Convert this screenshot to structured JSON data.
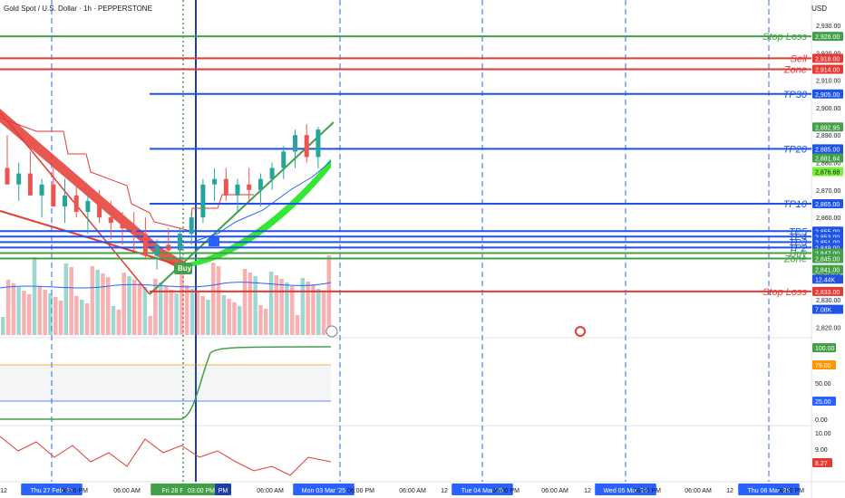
{
  "header": {
    "title": "Gold Spot / U.S. Dollar · 1h · PEPPERSTONE",
    "currency": "USD"
  },
  "colors": {
    "green": "#43a047",
    "red": "#e53935",
    "blue": "#1e53e5",
    "bull": "#26a69a",
    "bear": "#ef5350",
    "rsi_gray": "#787b86",
    "osc_orange": "#ff9800"
  },
  "chart_data": {
    "type": "candlestick",
    "symbol": "XAUUSD",
    "timeframe": "1h",
    "price_axis": {
      "ticks": [
        "2,930.00",
        "2,920.00",
        "2,910.00",
        "2,900.00",
        "2,890.00",
        "2,880.00",
        "2,870.00",
        "2,860.00",
        "2,850.00",
        "2,840.00",
        "2,830.00",
        "2,820.00"
      ]
    },
    "levels": [
      {
        "label": "Stop Loss",
        "price": 2926.0,
        "color": "#43a047",
        "tag": "2,926.00"
      },
      {
        "label": "Sell",
        "price": 2918.0,
        "color": "#e53935",
        "tag": "2,918.00"
      },
      {
        "label": "Zone",
        "price": 2914.0,
        "color": "#e53935",
        "tag": "2,914.00"
      },
      {
        "label": "TP30",
        "price": 2905.0,
        "color": "#1e53e5",
        "tag": "2,905.00"
      },
      {
        "label": "TP20",
        "price": 2885.0,
        "color": "#1e53e5",
        "tag": "2,885.00"
      },
      {
        "label": "TP10",
        "price": 2865.0,
        "color": "#1e53e5",
        "tag": "2,865.00"
      },
      {
        "label": "TP5",
        "price": 2855.0,
        "color": "#1e53e5",
        "tag": "2,855.00"
      },
      {
        "label": "TP4",
        "price": 2853.0,
        "color": "#1e53e5",
        "tag": "2,853.00"
      },
      {
        "label": "TP3",
        "price": 2851.0,
        "color": "#1e53e5",
        "tag": "2,851.00"
      },
      {
        "label": "TP2",
        "price": 2849.0,
        "color": "#1e53e5",
        "tag": "2,849.00"
      },
      {
        "label": "Buy",
        "price": 2847.0,
        "color": "#43a047",
        "tag": "2,847.00"
      },
      {
        "label": "Zone",
        "price": 2845.0,
        "color": "#43a047",
        "tag": "2,845.00"
      },
      {
        "label": "Stop Loss",
        "price": 2833.0,
        "color": "#e53935",
        "tag": "2,833.00"
      }
    ],
    "extra_tags": [
      {
        "text": "2,892.95",
        "color": "#43a047",
        "price": 2892.95
      },
      {
        "text": "2,882.21",
        "color": "#1e53e5",
        "price": 2882.21
      },
      {
        "text": "2,881.64",
        "color": "#43a047",
        "price": 2881.64
      },
      {
        "text": "2,876.68",
        "color": "#7bed3b",
        "price": 2876.68
      },
      {
        "text": "2,841.00",
        "color": "#43a047",
        "price": 2841.0
      },
      {
        "text": "12.44K",
        "color": "#1e53e5",
        "price": 2837.5
      },
      {
        "text": "7.08K",
        "color": "#1e53e5",
        "price": 2826.5
      }
    ],
    "candles_ohlc": [
      [
        2878,
        2890,
        2874,
        2872
      ],
      [
        2872,
        2880,
        2866,
        2876
      ],
      [
        2876,
        2884,
        2870,
        2868
      ],
      [
        2868,
        2874,
        2860,
        2872
      ],
      [
        2872,
        2878,
        2868,
        2864
      ],
      [
        2864,
        2874,
        2858,
        2868
      ],
      [
        2868,
        2872,
        2860,
        2862
      ],
      [
        2862,
        2868,
        2854,
        2866
      ],
      [
        2866,
        2870,
        2858,
        2860
      ],
      [
        2860,
        2866,
        2852,
        2858
      ],
      [
        2858,
        2862,
        2850,
        2856
      ],
      [
        2856,
        2862,
        2848,
        2854
      ],
      [
        2854,
        2860,
        2845,
        2846
      ],
      [
        2846,
        2852,
        2841,
        2850
      ],
      [
        2850,
        2856,
        2846,
        2848
      ],
      [
        2848,
        2856,
        2844,
        2854
      ],
      [
        2854,
        2862,
        2850,
        2860
      ],
      [
        2860,
        2874,
        2858,
        2872
      ],
      [
        2872,
        2878,
        2866,
        2874
      ],
      [
        2874,
        2878,
        2866,
        2868
      ],
      [
        2868,
        2874,
        2862,
        2872
      ],
      [
        2872,
        2878,
        2866,
        2870
      ],
      [
        2870,
        2876,
        2864,
        2874
      ],
      [
        2874,
        2880,
        2870,
        2878
      ],
      [
        2878,
        2886,
        2874,
        2884
      ],
      [
        2884,
        2892,
        2878,
        2890
      ],
      [
        2890,
        2894,
        2880,
        2882
      ],
      [
        2882,
        2893,
        2878,
        2892
      ]
    ],
    "x_axis": {
      "labels": [
        "12",
        "Thu 27 Feb '25",
        "06:00 PM",
        "06:00 AM",
        "Fri 28 Feb '25",
        "03:00 PM",
        "PM",
        "06:00 AM",
        "12",
        "Mon 03 Mar '25",
        "06:00 PM",
        "06:00 AM",
        "12",
        "Tue 04 Mar '25",
        "06:00 PM",
        "06:00 AM",
        "12",
        "Wed 05 Mar '25",
        "06:00 PM",
        "06:00 AM",
        "12",
        "Thu 06 Mar '25",
        "06:00 PM"
      ]
    },
    "signal_label": "Buy",
    "osc1": {
      "ticks": [
        "100.00",
        "79.00",
        "50.00",
        "25.00",
        "0.00"
      ],
      "tag_top": "100.00",
      "tag_mid": "79.00",
      "tag_low": "25.00"
    },
    "osc2": {
      "ticks": [
        "10.00",
        "9.00",
        "8.27"
      ],
      "tag": "8.27"
    }
  }
}
